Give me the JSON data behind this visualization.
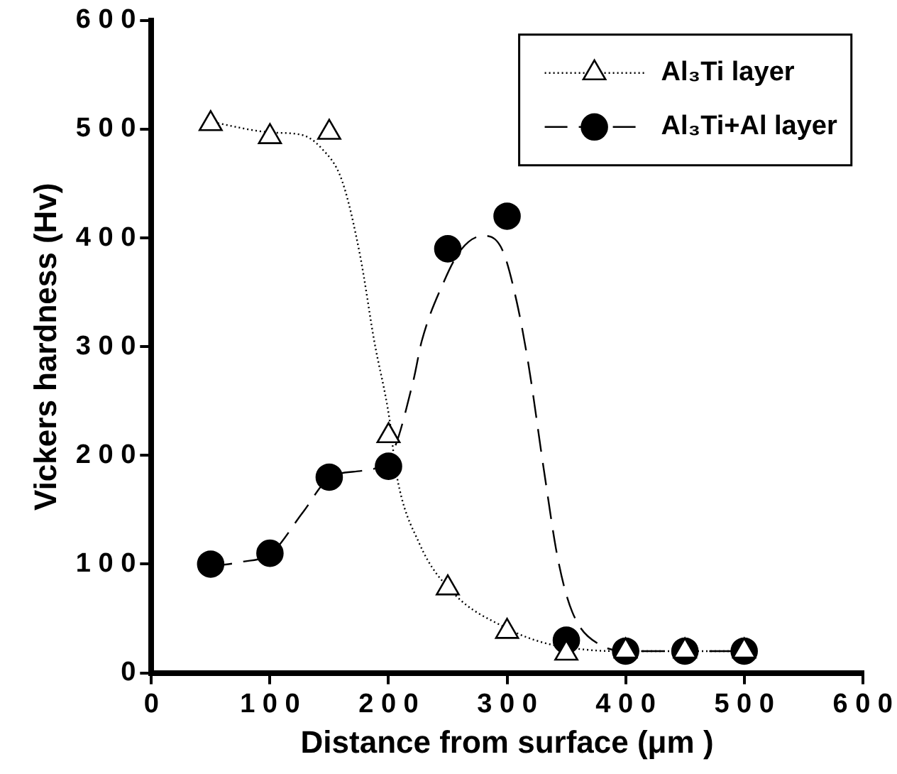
{
  "chart_data": {
    "type": "scatter",
    "xlabel": "Distance from surface (μm )",
    "ylabel": "Vickers hardness (Hv)",
    "xlim": [
      0,
      600
    ],
    "xticks": [
      0,
      100,
      200,
      300,
      400,
      500,
      600
    ],
    "ylim": [
      0,
      600
    ],
    "yticks": [
      0,
      100,
      200,
      300,
      400,
      500,
      600
    ],
    "grid": false,
    "legend": "top right",
    "series": [
      {
        "name": "Al₃Ti layer",
        "type": "scatter",
        "marker": "triangle",
        "color": "#000000",
        "x": [
          50,
          100,
          150,
          200,
          250,
          300,
          350,
          400,
          450,
          500
        ],
        "values": [
          505,
          493,
          497,
          218,
          78,
          38,
          18,
          20,
          20,
          20
        ]
      },
      {
        "name": "Al₃Ti+Al layer",
        "type": "scatter",
        "marker": "circle",
        "color": "#000000",
        "x": [
          50,
          100,
          150,
          200,
          250,
          300,
          350,
          400,
          450,
          500
        ],
        "values": [
          100,
          110,
          180,
          190,
          390,
          420,
          30,
          20,
          20,
          20
        ]
      },
      {
        "type": "line",
        "line_style": "dotted",
        "color": "#000000",
        "x": [
          49,
          101,
          126,
          143,
          161,
          176,
          188,
          201,
          206,
          226,
          256,
          296,
          330,
          370,
          400,
          500
        ],
        "values": [
          507,
          497,
          495,
          483,
          452,
          384,
          305,
          232,
          187,
          119,
          72,
          43,
          28,
          21,
          20,
          20
        ]
      },
      {
        "type": "line",
        "line_style": "dashed",
        "color": "#000000",
        "x": [
          49,
          76,
          101,
          128,
          151,
          178,
          201,
          221,
          228,
          246,
          261,
          280,
          296,
          308,
          318,
          331,
          343,
          355,
          378,
          405,
          500
        ],
        "values": [
          98,
          102,
          110,
          148,
          180,
          186,
          198,
          269,
          305,
          358,
          389,
          402,
          389,
          342,
          284,
          187,
          104,
          56,
          26,
          20,
          20
        ]
      }
    ]
  }
}
